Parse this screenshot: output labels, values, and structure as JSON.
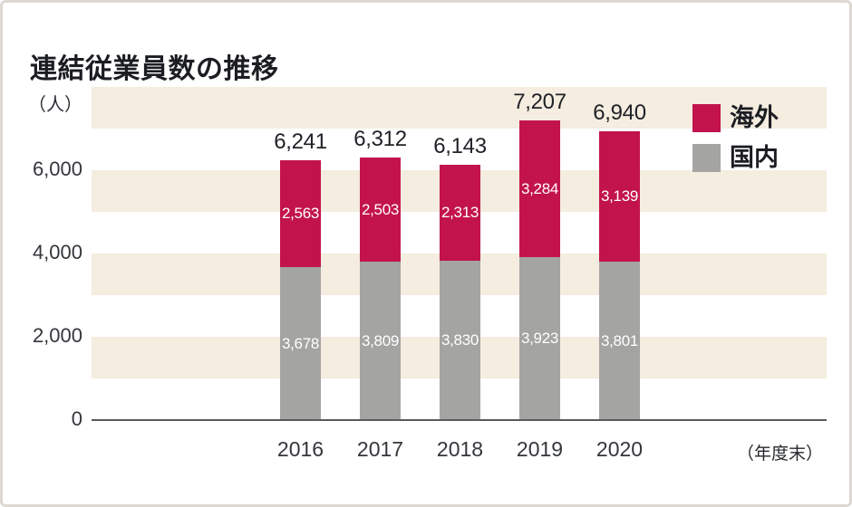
{
  "chart_data": {
    "type": "bar",
    "stacked": true,
    "title": "連結従業員数の推移",
    "unit_label": "（人）",
    "x_axis_note": "（年度末）",
    "categories": [
      "2016",
      "2017",
      "2018",
      "2019",
      "2020"
    ],
    "series": [
      {
        "name": "海外",
        "color": "#c3134c",
        "values": [
          2563,
          2503,
          2313,
          3284,
          3139
        ],
        "values_display": [
          "2,563",
          "2,503",
          "2,313",
          "3,284",
          "3,139"
        ]
      },
      {
        "name": "国内",
        "color": "#a4a4a2",
        "values": [
          3678,
          3809,
          3830,
          3923,
          3801
        ],
        "values_display": [
          "3,678",
          "3,809",
          "3,830",
          "3,923",
          "3,801"
        ]
      }
    ],
    "totals": [
      6241,
      6312,
      6143,
      7207,
      6940
    ],
    "totals_display": [
      "6,241",
      "6,312",
      "6,143",
      "7,207",
      "6,940"
    ],
    "y_ticks": [
      0,
      2000,
      4000,
      6000
    ],
    "y_tick_labels": [
      "0",
      "2,000",
      "4,000",
      "6,000"
    ],
    "ylim": [
      0,
      8000
    ],
    "grid": "striped-bands",
    "background_stripes": {
      "color": "#f4ede0",
      "interval": 1000
    },
    "legend_position": "top-right",
    "colors": {
      "overseas": "#c3134c",
      "domestic": "#a4a4a2",
      "stripe": "#f4ede0",
      "axis_line": "#595a5e",
      "text_dark": "#1b1d22",
      "card_border": "#ddd8d2"
    }
  }
}
